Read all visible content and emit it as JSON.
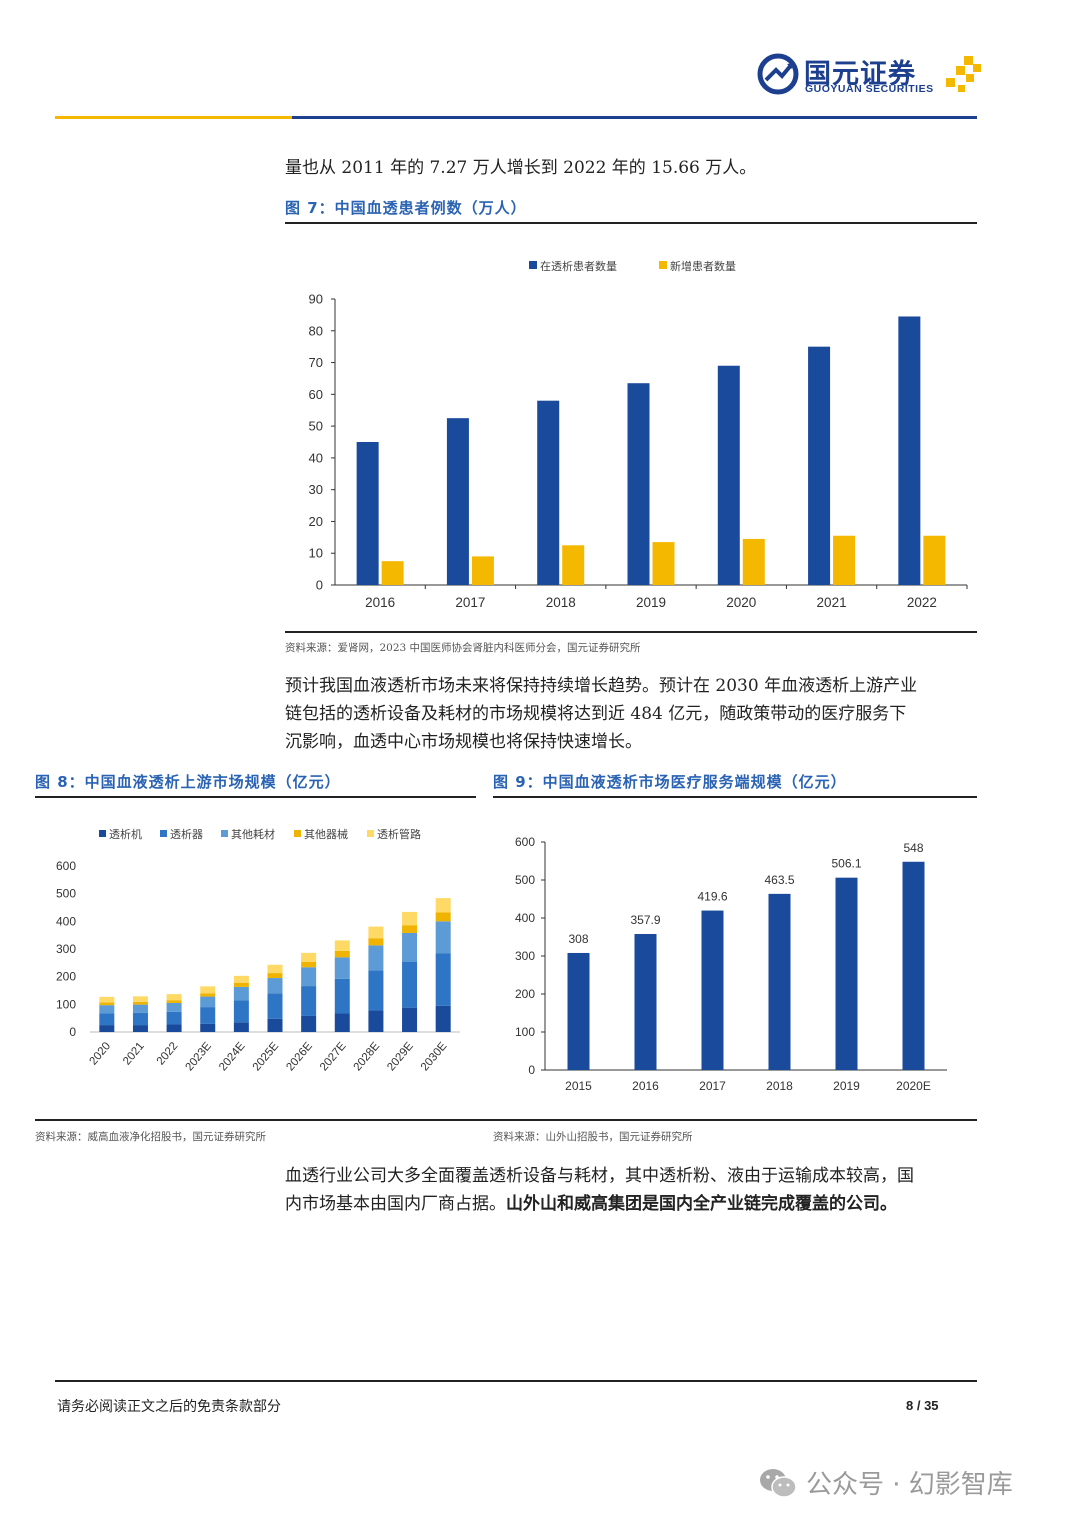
{
  "header": {
    "logo_cn": "国元证券",
    "logo_en": "GUOYUAN SECURITIES"
  },
  "intro_text": "量也从 2011 年的 7.27 万人增长到 2022 年的 15.66 万人。",
  "paragraph_2": [
    "预计我国血液透析市场未来将保持持续增长趋势。预计在 2030 年血液透析上游产业",
    "链包括的透析设备及耗材的市场规模将达到近 484 亿元，随政策带动的医疗服务下",
    "沉影响，血透中心市场规模也将保持快速增长。"
  ],
  "paragraph_3": {
    "line1": "血透行业公司大多全面覆盖透析设备与耗材，其中透析粉、液由于运输成本较高，国",
    "line2_normal": "内市场基本由国内厂商占据。",
    "line2_bold": "山外山和威高集团是国内全产业链完成覆盖的公司。"
  },
  "figures": {
    "fig7": {
      "title": "图 7：中国血透患者例数（万人）",
      "source": "资料来源：爱肾网，2023 中国医师协会肾脏内科医师分会，国元证券研究所"
    },
    "fig8": {
      "title": "图 8：中国血液透析上游市场规模（亿元）",
      "source": "资料来源：威高血液净化招股书，国元证券研究所"
    },
    "fig9": {
      "title": "图 9：中国血液透析市场医疗服务端规模（亿元）",
      "source": "资料来源：山外山招股书，国元证券研究所"
    }
  },
  "footer": {
    "disclaimer": "请务必阅读正文之后的免责条款部分",
    "page": "8 / 35"
  },
  "watermark": "公众号 · 幻影智库",
  "colors": {
    "navy": "#1a4a9c",
    "yellow": "#f5b800",
    "blue2": "#2e75c6",
    "blue3": "#5c9bd5",
    "orange": "#f0b400",
    "lightyellow": "#ffd966"
  },
  "chart_data": [
    {
      "id": "fig7",
      "type": "bar",
      "categories": [
        "2016",
        "2017",
        "2018",
        "2019",
        "2020",
        "2021",
        "2022"
      ],
      "series": [
        {
          "name": "在透析患者数量",
          "values": [
            45,
            52.5,
            58,
            63.5,
            69,
            75,
            84.5
          ]
        },
        {
          "name": "新增患者数量",
          "values": [
            7.5,
            9,
            12.5,
            13.5,
            14.5,
            15.5,
            15.5
          ]
        }
      ],
      "yticks": [
        "0",
        "10",
        "20",
        "30",
        "40",
        "50",
        "60",
        "70",
        "80",
        "90"
      ],
      "ylim": [
        0,
        90
      ],
      "legend": "top"
    },
    {
      "id": "fig8",
      "type": "bar",
      "stacked": true,
      "categories": [
        "2020",
        "2021",
        "2022",
        "2023E",
        "2024E",
        "2025E",
        "2026E",
        "2027E",
        "2028E",
        "2029E",
        "2030E"
      ],
      "series": [
        {
          "name": "透析机",
          "values": [
            25,
            25,
            27,
            30,
            35,
            48,
            58,
            67,
            78,
            88,
            95
          ]
        },
        {
          "name": "透析器",
          "values": [
            42,
            44,
            46,
            60,
            80,
            92,
            108,
            125,
            145,
            165,
            190
          ]
        },
        {
          "name": "其他耗材",
          "values": [
            30,
            30,
            32,
            38,
            48,
            55,
            68,
            78,
            90,
            105,
            115
          ]
        },
        {
          "name": "其他器械",
          "values": [
            10,
            10,
            10,
            12,
            15,
            18,
            20,
            23,
            26,
            28,
            32
          ]
        },
        {
          "name": "透析管路",
          "values": [
            20,
            20,
            22,
            25,
            25,
            30,
            32,
            38,
            42,
            48,
            52
          ]
        }
      ],
      "yticks": [
        "0",
        "100",
        "200",
        "300",
        "400",
        "500",
        "600"
      ],
      "ylim": [
        0,
        600
      ],
      "legend": "top"
    },
    {
      "id": "fig9",
      "type": "bar",
      "categories": [
        "2015",
        "2016",
        "2017",
        "2018",
        "2019",
        "2020E"
      ],
      "values": [
        308,
        357.9,
        419.6,
        463.5,
        506.1,
        548
      ],
      "labels": [
        "308",
        "357.9",
        "419.6",
        "463.5",
        "506.1",
        "548"
      ],
      "yticks": [
        "0",
        "100",
        "200",
        "300",
        "400",
        "500",
        "600"
      ],
      "ylim": [
        0,
        600
      ]
    }
  ]
}
